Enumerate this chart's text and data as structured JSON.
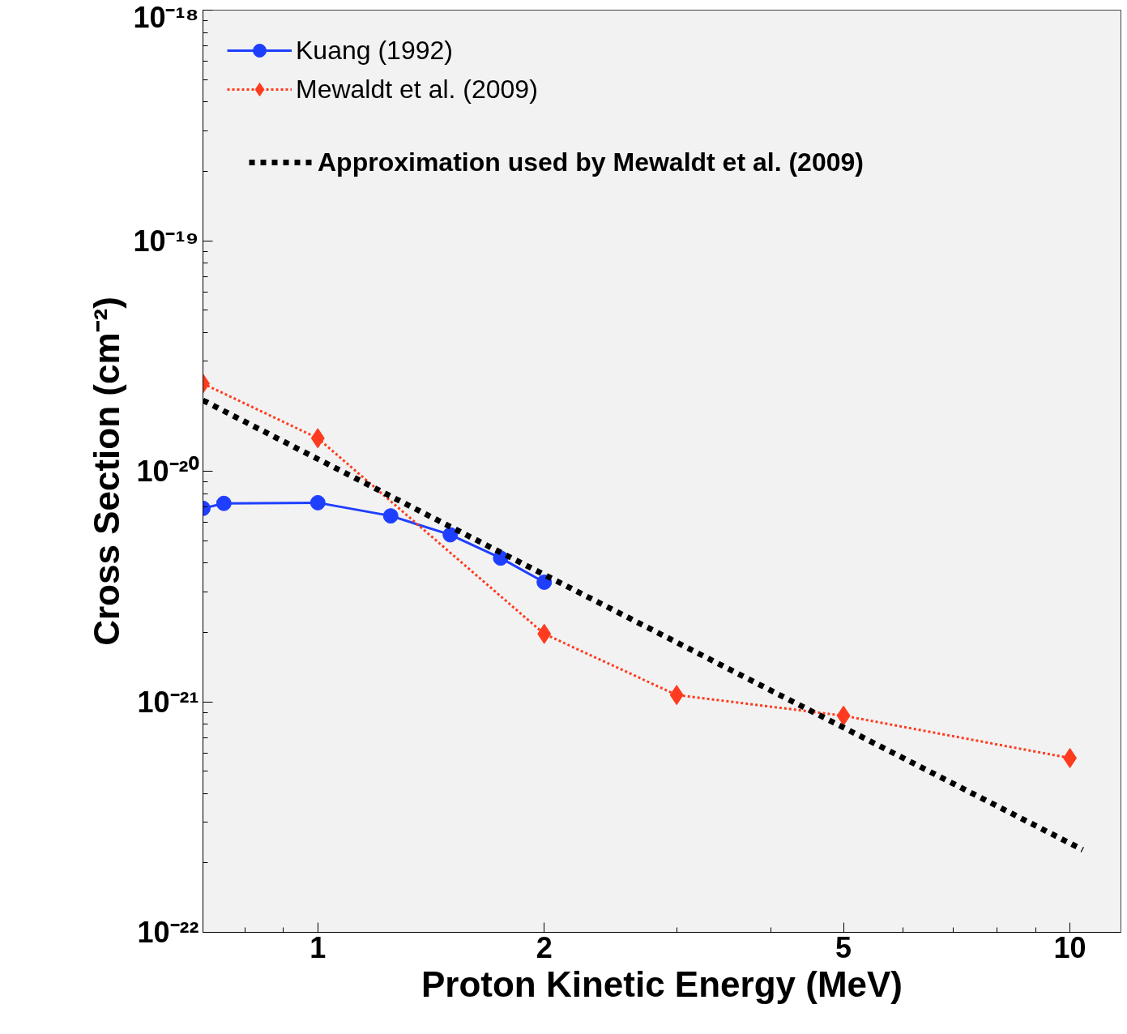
{
  "chart_data": {
    "type": "line",
    "xlabel": "Proton Kinetic Energy (MeV)",
    "ylabel": "Cross Section (cm⁻²)",
    "log": "xy",
    "xlim": [
      0.7035,
      11.69
    ],
    "ylim": [
      1e-22,
      1e-18
    ],
    "xticks": [
      1,
      2,
      5,
      10
    ],
    "yticks": [
      {
        "value": 1e-22,
        "label": "10⁻²²"
      },
      {
        "value": 1e-21,
        "label": "10⁻²¹"
      },
      {
        "value": 1e-20,
        "label": "10⁻²⁰"
      },
      {
        "value": 1e-19,
        "label": "10⁻¹⁹"
      },
      {
        "value": 1e-18,
        "label": "10⁻¹⁸"
      }
    ],
    "grid": false,
    "legend": "top left",
    "series": [
      {
        "name": "Kuang (1992)",
        "color": "#1f3fff",
        "marker": "circle",
        "line_style": "solid",
        "x": [
          0.7035,
          0.75,
          1,
          1.25,
          1.5,
          1.75,
          2
        ],
        "values": [
          6.9e-21,
          7.25e-21,
          7.3e-21,
          6.4e-21,
          5.3e-21,
          4.2e-21,
          3.3e-21
        ]
      },
      {
        "name": "Mewaldt et al. (2009)",
        "color": "#ff3b1f",
        "marker": "diamond",
        "line_style": "dotted",
        "x": [
          0.7035,
          1,
          2,
          3,
          5,
          10
        ],
        "values": [
          2.4e-20,
          1.39e-20,
          1.97e-21,
          1.07e-21,
          8.7e-22,
          5.7e-22
        ]
      },
      {
        "name": "Approximation used by Mewaldt et al. (2009)",
        "color": "#000000",
        "marker": "none",
        "line_style": "dotted",
        "x": [
          0.7035,
          10.4
        ],
        "values": [
          2.03e-20,
          2.28e-22
        ]
      }
    ]
  }
}
